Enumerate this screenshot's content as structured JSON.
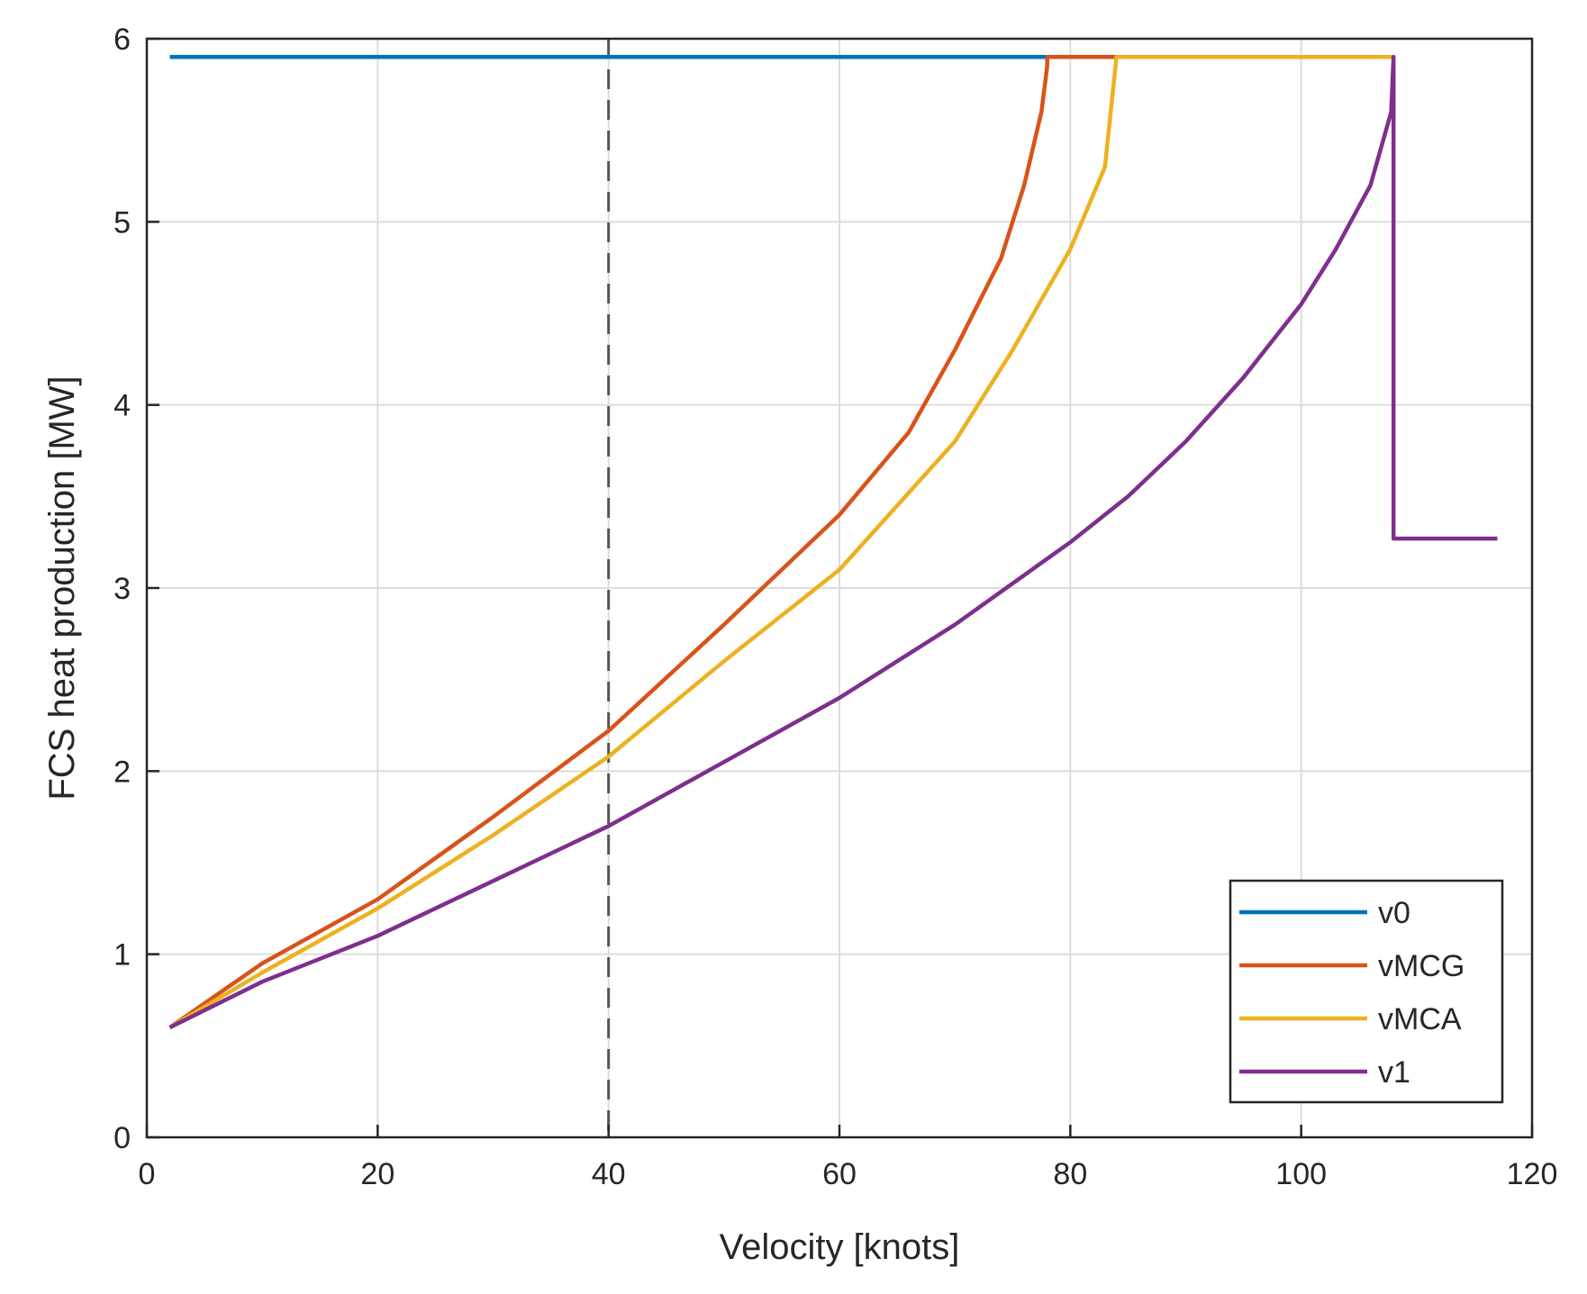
{
  "chart_data": {
    "type": "line",
    "title": "",
    "xlabel": "Velocity [knots]",
    "ylabel": "FCS heat production [MW]",
    "xlim": [
      0,
      120
    ],
    "ylim": [
      0,
      6
    ],
    "xticks": [
      0,
      20,
      40,
      60,
      80,
      100,
      120
    ],
    "yticks": [
      0,
      1,
      2,
      3,
      4,
      5,
      6
    ],
    "xtick_labels": [
      "0",
      "20",
      "40",
      "60",
      "80",
      "100",
      "120"
    ],
    "ytick_labels": [
      "0",
      "1",
      "2",
      "3",
      "4",
      "5",
      "6"
    ],
    "grid": true,
    "legend_position": "bottom-right",
    "reference_line": {
      "orientation": "vertical",
      "x": 40,
      "style": "dashed",
      "color": "#555555"
    },
    "series": [
      {
        "name": "v0",
        "color": "#0072BD",
        "x": [
          2,
          108
        ],
        "y": [
          5.9,
          5.9
        ]
      },
      {
        "name": "vMCG",
        "color": "#D95319",
        "x": [
          2,
          10,
          20,
          30,
          40,
          50,
          60,
          66,
          70,
          74,
          76,
          77.5,
          78,
          78,
          84
        ],
        "y": [
          0.6,
          0.95,
          1.3,
          1.75,
          2.22,
          2.8,
          3.4,
          3.85,
          4.3,
          4.8,
          5.2,
          5.6,
          5.85,
          5.9,
          5.9
        ]
      },
      {
        "name": "vMCA",
        "color": "#EDB120",
        "x": [
          2,
          10,
          20,
          30,
          40,
          50,
          60,
          70,
          75,
          80,
          83,
          84,
          84,
          108
        ],
        "y": [
          0.6,
          0.9,
          1.25,
          1.65,
          2.08,
          2.6,
          3.1,
          3.8,
          4.3,
          4.85,
          5.3,
          5.9,
          5.9,
          5.9
        ]
      },
      {
        "name": "v1",
        "color": "#7E2F8E",
        "x": [
          2,
          10,
          20,
          30,
          40,
          50,
          60,
          70,
          80,
          85,
          90,
          95,
          100,
          103,
          106,
          107.8,
          108,
          108,
          117
        ],
        "y": [
          0.6,
          0.85,
          1.1,
          1.4,
          1.7,
          2.05,
          2.4,
          2.8,
          3.25,
          3.5,
          3.8,
          4.15,
          4.55,
          4.85,
          5.2,
          5.6,
          5.9,
          3.27,
          3.27
        ]
      }
    ]
  }
}
